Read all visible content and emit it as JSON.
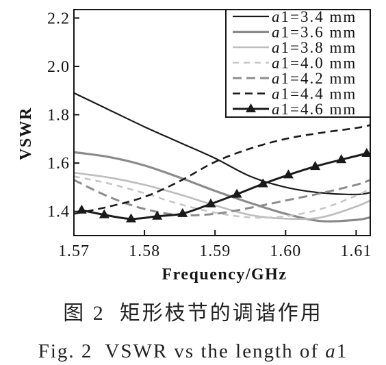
{
  "chart_data": {
    "type": "line",
    "xlabel": "Frequency/GHz",
    "ylabel": "VSWR",
    "xlim": [
      1.57,
      1.612
    ],
    "ylim": [
      1.3,
      2.235
    ],
    "x_ticks": [
      "1.57",
      "1.58",
      "1.59",
      "1.60",
      "1.61"
    ],
    "y_ticks": [
      "1.4",
      "1.6",
      "1.8",
      "2.0",
      "2.2"
    ],
    "grid": false,
    "legend_position": "top-right",
    "series": [
      {
        "name": "a1=3.4 mm",
        "color": "#1a1a1a",
        "line_style": "solid",
        "marker": "none",
        "x": [
          1.57,
          1.575,
          1.58,
          1.585,
          1.59,
          1.595,
          1.6,
          1.605,
          1.61,
          1.612
        ],
        "y": [
          1.89,
          1.82,
          1.75,
          1.685,
          1.62,
          1.545,
          1.5,
          1.477,
          1.47,
          1.478
        ]
      },
      {
        "name": "a1=3.6 mm",
        "color": "#8a8a8a",
        "line_style": "solid",
        "marker": "none",
        "x": [
          1.57,
          1.575,
          1.58,
          1.585,
          1.59,
          1.595,
          1.6,
          1.605,
          1.61,
          1.612
        ],
        "y": [
          1.645,
          1.625,
          1.59,
          1.54,
          1.485,
          1.435,
          1.39,
          1.36,
          1.365,
          1.375
        ]
      },
      {
        "name": "a1=3.8 mm",
        "color": "#bdbdbd",
        "line_style": "solid",
        "marker": "none",
        "x": [
          1.57,
          1.575,
          1.58,
          1.585,
          1.59,
          1.595,
          1.6,
          1.605,
          1.61,
          1.612
        ],
        "y": [
          1.56,
          1.54,
          1.51,
          1.47,
          1.425,
          1.385,
          1.37,
          1.375,
          1.42,
          1.445
        ]
      },
      {
        "name": "a1=4.0 mm",
        "color": "#c6c6c6",
        "line_style": "dashed",
        "marker": "none",
        "x": [
          1.57,
          1.575,
          1.58,
          1.585,
          1.59,
          1.595,
          1.6,
          1.605,
          1.61,
          1.612
        ],
        "y": [
          1.545,
          1.515,
          1.475,
          1.43,
          1.395,
          1.375,
          1.38,
          1.41,
          1.465,
          1.495
        ]
      },
      {
        "name": "a1=4.2 mm",
        "color": "#8c8c8c",
        "line_style": "dashed",
        "marker": "none",
        "x": [
          1.57,
          1.575,
          1.58,
          1.585,
          1.59,
          1.595,
          1.6,
          1.605,
          1.61,
          1.612
        ],
        "y": [
          1.53,
          1.46,
          1.41,
          1.385,
          1.39,
          1.415,
          1.445,
          1.475,
          1.51,
          1.53
        ]
      },
      {
        "name": "a1=4.4 mm",
        "color": "#1a1a1a",
        "line_style": "dashed",
        "marker": "none",
        "x": [
          1.57,
          1.575,
          1.58,
          1.585,
          1.59,
          1.595,
          1.6,
          1.605,
          1.61,
          1.612
        ],
        "y": [
          1.39,
          1.42,
          1.46,
          1.525,
          1.605,
          1.66,
          1.7,
          1.725,
          1.745,
          1.757
        ]
      },
      {
        "name": "a1=4.6 mm",
        "color": "#1a1a1a",
        "line_style": "solid",
        "marker": "triangle",
        "x": [
          1.5711,
          1.5743,
          1.5781,
          1.5818,
          1.5854,
          1.5894,
          1.5931,
          1.5968,
          1.6004,
          1.6042,
          1.6079,
          1.6115
        ],
        "y": [
          1.405,
          1.386,
          1.369,
          1.38,
          1.391,
          1.431,
          1.471,
          1.514,
          1.551,
          1.586,
          1.614,
          1.64
        ]
      }
    ]
  },
  "caption": {
    "chinese": "图 2  矩形枝节的调谐作用",
    "english": "Fig. 2  VSWR vs the length of a1"
  }
}
